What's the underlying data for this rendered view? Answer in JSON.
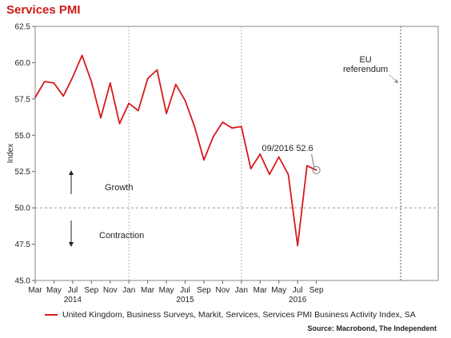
{
  "chart_data": {
    "type": "line",
    "title": "Services PMI",
    "ylabel": "Index",
    "ylim": [
      45.0,
      62.5
    ],
    "y_ticks": [
      62.5,
      60.0,
      57.5,
      55.0,
      52.5,
      50.0,
      47.5,
      45.0
    ],
    "y_tick_labels": [
      "62.5",
      "60.0",
      "57.5",
      "55.0",
      "52.5",
      "50.0",
      "47.5",
      "45.0"
    ],
    "x_range": [
      "2013-03",
      "2016-10"
    ],
    "month_ticks": [
      {
        "x": "2013-03",
        "label": "Mar"
      },
      {
        "x": "2013-05",
        "label": "May"
      },
      {
        "x": "2013-07",
        "label": "Jul"
      },
      {
        "x": "2013-09",
        "label": "Sep"
      },
      {
        "x": "2013-11",
        "label": "Nov"
      },
      {
        "x": "2014-01",
        "label": "Jan"
      },
      {
        "x": "2014-03",
        "label": "Mar"
      },
      {
        "x": "2014-05",
        "label": "May"
      },
      {
        "x": "2014-07",
        "label": "Jul"
      },
      {
        "x": "2014-09",
        "label": "Sep"
      },
      {
        "x": "2014-11",
        "label": "Nov"
      },
      {
        "x": "2015-01",
        "label": "Jan"
      },
      {
        "x": "2015-03",
        "label": "Mar"
      },
      {
        "x": "2015-05",
        "label": "May"
      },
      {
        "x": "2015-07",
        "label": "Jul"
      },
      {
        "x": "2015-09",
        "label": "Sep"
      }
    ],
    "year_labels": [
      {
        "x": "2013-07",
        "label": "2014"
      },
      {
        "x": "2014-07",
        "label": "2015"
      },
      {
        "x": "2015-07",
        "label": "2016"
      }
    ],
    "year_dividers": [
      "2014-01",
      "2015-01"
    ],
    "referendum_line": "2016-06",
    "series": [
      {
        "name": "United Kingdom, Business Surveys, Markit, Services, Services PMI Business Activity Index, SA",
        "color": "#d7191c",
        "x": [
          "2013-03",
          "2013-04",
          "2013-05",
          "2013-06",
          "2013-07",
          "2013-08",
          "2013-09",
          "2013-10",
          "2013-11",
          "2013-12",
          "2014-01",
          "2014-02",
          "2014-03",
          "2014-04",
          "2014-05",
          "2014-06",
          "2014-07",
          "2014-08",
          "2014-09",
          "2014-10",
          "2014-11",
          "2014-12",
          "2015-01",
          "2015-02",
          "2015-03",
          "2015-04",
          "2015-05",
          "2015-06",
          "2015-07",
          "2015-08",
          "2015-09"
        ],
        "values": [
          57.6,
          58.7,
          58.6,
          57.7,
          59.0,
          60.5,
          58.7,
          56.2,
          58.6,
          55.8,
          57.2,
          56.7,
          58.9,
          59.5,
          56.5,
          58.5,
          57.4,
          55.6,
          53.3,
          54.9,
          55.9,
          55.5,
          55.6,
          52.7,
          53.7,
          52.3,
          53.5,
          52.3,
          47.4,
          52.9,
          52.6
        ]
      }
    ],
    "reference_line": {
      "y": 50.0,
      "style": "dashed"
    },
    "annotations": {
      "referendum": [
        "EU",
        "referendum"
      ],
      "last_point": "09/2016 52.6",
      "growth": "Growth",
      "contraction": "Contraction"
    },
    "legend_label": "United Kingdom, Business Surveys, Markit, Services, Services PMI Business Activity Index, SA",
    "grid": false
  },
  "source": "Source: Macrobond, The Independent"
}
